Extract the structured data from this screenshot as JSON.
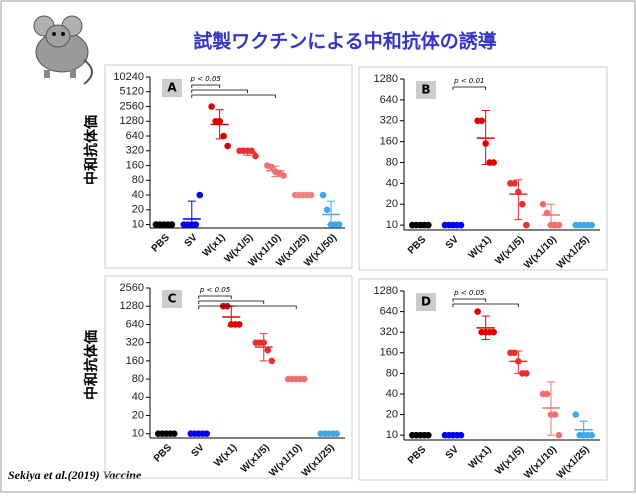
{
  "title": "試製ワクチンによる中和抗体の誘導",
  "y_label": "中和抗体価",
  "source": "Sekiya et al.(2019) Vaccine",
  "chart_data": [
    {
      "type": "dotplot",
      "title": "A",
      "annotation": "p < 0.05",
      "yscale": "log",
      "categories": [
        "PBS",
        "SV",
        "W(x1)",
        "W(x1/5)",
        "W(x1/10)",
        "W(x1/25)",
        "W(x1/50)"
      ],
      "colors": [
        "#000000",
        "#0000ee",
        "#e00000",
        "#e83030",
        "#f07070",
        "#f08080",
        "#40a8e8"
      ],
      "points": [
        [
          10,
          10,
          10,
          10,
          10
        ],
        [
          10,
          10,
          10,
          10,
          40
        ],
        [
          2560,
          1280,
          1280,
          640,
          400
        ],
        [
          320,
          320,
          320,
          320,
          250
        ],
        [
          160,
          150,
          120,
          110,
          100
        ],
        [
          40,
          40,
          40,
          40,
          40
        ],
        [
          40,
          20,
          10,
          10,
          10
        ]
      ],
      "means": [
        10,
        13,
        1100,
        300,
        125,
        40,
        16
      ],
      "upper": [
        10,
        30,
        2200,
        330,
        155,
        40,
        30
      ],
      "lower": [
        10,
        10,
        560,
        260,
        95,
        40,
        10
      ],
      "ylim": [
        8.5,
        10240
      ],
      "yticks": [
        10,
        20,
        40,
        80,
        160,
        320,
        640,
        1280,
        2560,
        5120,
        10240
      ]
    },
    {
      "type": "dotplot",
      "title": "B",
      "annotation": "p < 0.01",
      "yscale": "log",
      "categories": [
        "PBS",
        "SV",
        "W(x1)",
        "W(x1/5)",
        "W(x1/10)",
        "W(x1/25)"
      ],
      "colors": [
        "#000000",
        "#0000ee",
        "#e00000",
        "#e83030",
        "#f07070",
        "#40a8e8"
      ],
      "points": [
        [
          10,
          10,
          10,
          10,
          10
        ],
        [
          10,
          10,
          10,
          10,
          10
        ],
        [
          320,
          320,
          150,
          80,
          80
        ],
        [
          40,
          40,
          30,
          20,
          10
        ],
        [
          20,
          15,
          10,
          10,
          10
        ],
        [
          10,
          10,
          10,
          10,
          10
        ]
      ],
      "means": [
        10,
        10,
        180,
        28,
        14,
        10
      ],
      "upper": [
        10,
        10,
        450,
        45,
        20,
        10
      ],
      "lower": [
        10,
        10,
        75,
        12,
        10,
        10
      ],
      "ylim": [
        8.5,
        1280
      ],
      "yticks": [
        10,
        20,
        40,
        80,
        160,
        320,
        640,
        1280
      ]
    },
    {
      "type": "dotplot",
      "title": "C",
      "annotation": "p < 0.05",
      "yscale": "log",
      "categories": [
        "PBS",
        "SV",
        "W(x1)",
        "W(x1/5)",
        "W(x1/10)",
        "W(x1/25)"
      ],
      "colors": [
        "#000000",
        "#0000ee",
        "#e00000",
        "#e83030",
        "#f07070",
        "#40a8e8"
      ],
      "points": [
        [
          10,
          10,
          10,
          10,
          10
        ],
        [
          10,
          10,
          10,
          10,
          10
        ],
        [
          1280,
          1280,
          640,
          640,
          640
        ],
        [
          320,
          320,
          320,
          240,
          160
        ],
        [
          80,
          80,
          80,
          80,
          80
        ],
        [
          10,
          10,
          10,
          10,
          10
        ]
      ],
      "means": [
        10,
        10,
        850,
        270,
        80,
        10
      ],
      "upper": [
        10,
        10,
        1280,
        450,
        80,
        10
      ],
      "lower": [
        10,
        10,
        600,
        160,
        80,
        10
      ],
      "ylim": [
        8.5,
        2560
      ],
      "yticks": [
        10,
        20,
        40,
        80,
        160,
        320,
        640,
        1280,
        2560
      ]
    },
    {
      "type": "dotplot",
      "title": "D",
      "annotation": "p < 0.05",
      "yscale": "log",
      "categories": [
        "PBS",
        "SV",
        "W(x1)",
        "W(x1/5)",
        "W(x1/10)",
        "W(x1/25)"
      ],
      "colors": [
        "#000000",
        "#0000ee",
        "#e00000",
        "#e83030",
        "#f07070",
        "#40a8e8"
      ],
      "points": [
        [
          10,
          10,
          10,
          10,
          10
        ],
        [
          10,
          10,
          10,
          10,
          10
        ],
        [
          640,
          320,
          320,
          320,
          320
        ],
        [
          160,
          160,
          120,
          80,
          80
        ],
        [
          40,
          40,
          20,
          20,
          10
        ],
        [
          20,
          10,
          10,
          10,
          10
        ]
      ],
      "means": [
        10,
        10,
        370,
        120,
        25,
        12
      ],
      "upper": [
        10,
        10,
        550,
        170,
        60,
        16
      ],
      "lower": [
        10,
        10,
        250,
        80,
        10,
        10
      ],
      "ylim": [
        8.5,
        1280
      ],
      "yticks": [
        10,
        20,
        40,
        80,
        160,
        320,
        640,
        1280
      ]
    }
  ]
}
